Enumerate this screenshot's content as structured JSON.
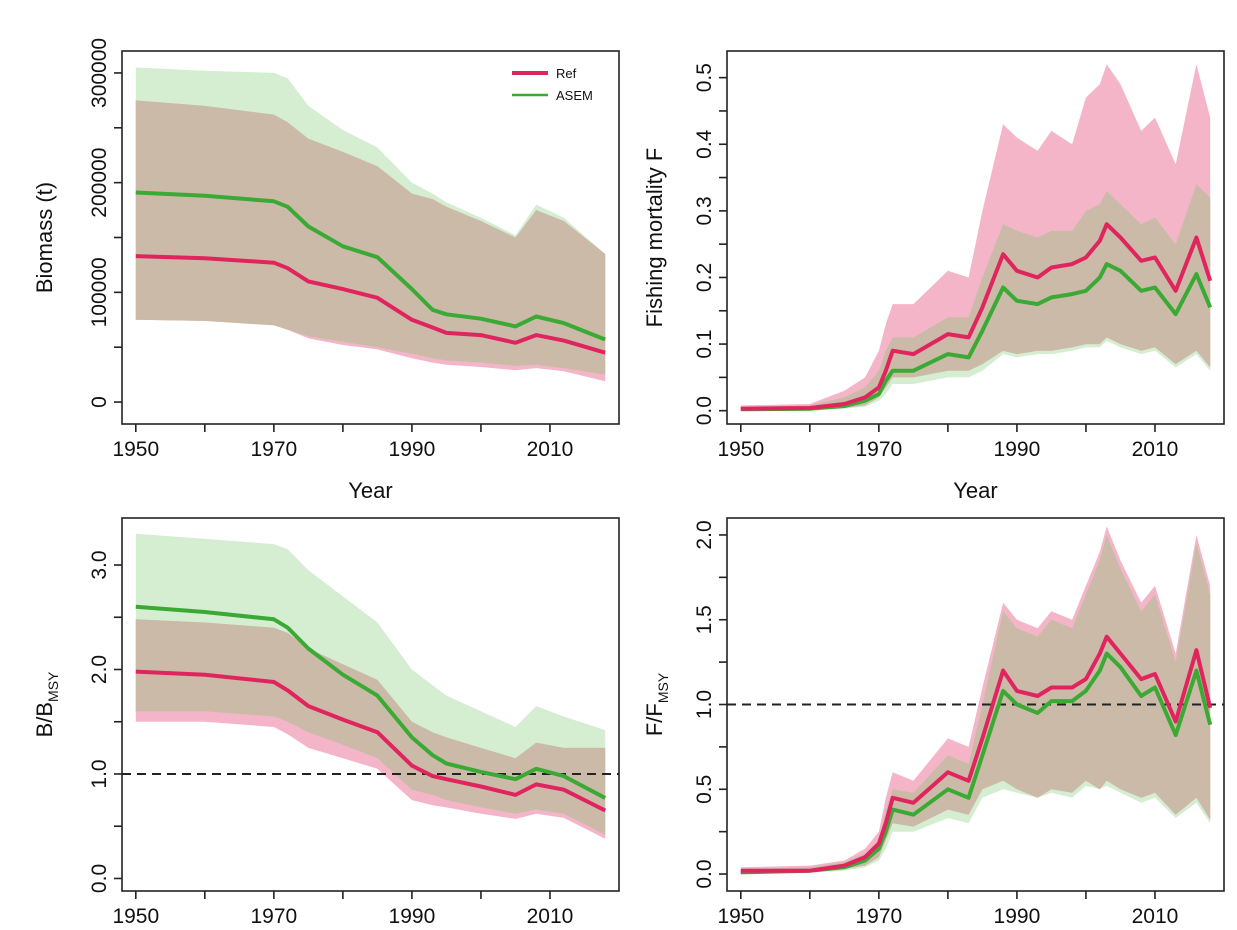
{
  "colors": {
    "ref": "#e0245e",
    "asem": "#3aaa35",
    "ref_band": "#f2a8bf",
    "asem_band": "#b9e2b4",
    "overlap_band": "#cbb8a6",
    "reference_line": "#222222"
  },
  "legend": {
    "entries": [
      {
        "label": "Ref",
        "color_key": "ref"
      },
      {
        "label": "ASEM",
        "color_key": "asem"
      }
    ],
    "placement": "top-right of first panel"
  },
  "chart_data": [
    {
      "type": "line",
      "panel": "top-left",
      "xlabel": "Year",
      "ylabel": "Biomass (t)",
      "xlim": [
        1948,
        2020
      ],
      "ylim": [
        -20000,
        320000
      ],
      "xticks": [
        1950,
        1970,
        1990,
        2010
      ],
      "xtick_labels": [
        "1950",
        "1970",
        "1990",
        "2010"
      ],
      "yticks": [
        0,
        100000,
        200000,
        300000
      ],
      "ytick_labels": [
        "0",
        "100000",
        "200000",
        "300000"
      ],
      "series": [
        {
          "name": "Ref",
          "color_key": "ref",
          "x": [
            1950,
            1960,
            1970,
            1972,
            1975,
            1980,
            1985,
            1990,
            1993,
            1995,
            2000,
            2005,
            2008,
            2012,
            2018
          ],
          "y": [
            133000,
            131000,
            127000,
            122000,
            110000,
            103000,
            95000,
            75000,
            68000,
            63000,
            61000,
            54000,
            61000,
            56000,
            45000
          ],
          "lower": [
            75000,
            74000,
            70000,
            66000,
            58000,
            52000,
            48000,
            40000,
            36000,
            34000,
            32000,
            29000,
            31000,
            28000,
            19000
          ],
          "upper": [
            275000,
            270000,
            262000,
            255000,
            240000,
            228000,
            215000,
            190000,
            185000,
            178000,
            165000,
            150000,
            175000,
            165000,
            135000
          ]
        },
        {
          "name": "ASEM",
          "color_key": "asem",
          "x": [
            1950,
            1960,
            1970,
            1972,
            1975,
            1980,
            1985,
            1990,
            1993,
            1995,
            2000,
            2005,
            2008,
            2012,
            2018
          ],
          "y": [
            191000,
            188000,
            183000,
            178000,
            160000,
            142000,
            132000,
            103000,
            84000,
            80000,
            76000,
            69000,
            78000,
            72000,
            57000
          ],
          "lower": [
            75000,
            74000,
            70000,
            66000,
            60000,
            55000,
            50000,
            44000,
            40000,
            38000,
            36000,
            33000,
            34000,
            31000,
            25000
          ],
          "upper": [
            305000,
            302000,
            300000,
            295000,
            270000,
            248000,
            232000,
            200000,
            190000,
            182000,
            168000,
            152000,
            180000,
            168000,
            135000
          ]
        }
      ]
    },
    {
      "type": "line",
      "panel": "top-right",
      "xlabel": "Year",
      "ylabel": "Fishing mortality F",
      "xlim": [
        1948,
        2020
      ],
      "ylim": [
        -0.02,
        0.54
      ],
      "xticks": [
        1950,
        1970,
        1990,
        2010
      ],
      "xtick_labels": [
        "1950",
        "1970",
        "1990",
        "2010"
      ],
      "yticks": [
        0,
        0.1,
        0.2,
        0.3,
        0.4,
        0.5
      ],
      "ytick_labels": [
        "0.0",
        "0.1",
        "0.2",
        "0.3",
        "0.4",
        "0.5"
      ],
      "series": [
        {
          "name": "Ref",
          "color_key": "ref",
          "x": [
            1950,
            1960,
            1965,
            1968,
            1970,
            1971,
            1972,
            1975,
            1980,
            1983,
            1985,
            1988,
            1990,
            1993,
            1995,
            1998,
            2000,
            2002,
            2003,
            2005,
            2008,
            2010,
            2013,
            2016,
            2018
          ],
          "y": [
            0.003,
            0.004,
            0.01,
            0.02,
            0.035,
            0.06,
            0.09,
            0.085,
            0.115,
            0.11,
            0.155,
            0.235,
            0.21,
            0.2,
            0.215,
            0.22,
            0.23,
            0.255,
            0.28,
            0.26,
            0.225,
            0.23,
            0.18,
            0.26,
            0.195
          ],
          "lower": [
            0,
            0.001,
            0.004,
            0.008,
            0.02,
            0.035,
            0.05,
            0.05,
            0.06,
            0.06,
            0.07,
            0.09,
            0.085,
            0.09,
            0.09,
            0.095,
            0.1,
            0.1,
            0.11,
            0.1,
            0.09,
            0.095,
            0.07,
            0.09,
            0.065
          ],
          "upper": [
            0.008,
            0.01,
            0.03,
            0.05,
            0.09,
            0.13,
            0.16,
            0.16,
            0.21,
            0.2,
            0.3,
            0.43,
            0.41,
            0.39,
            0.42,
            0.4,
            0.47,
            0.49,
            0.52,
            0.49,
            0.42,
            0.44,
            0.37,
            0.52,
            0.44
          ]
        },
        {
          "name": "ASEM",
          "color_key": "asem",
          "x": [
            1950,
            1960,
            1965,
            1968,
            1970,
            1971,
            1972,
            1975,
            1980,
            1983,
            1985,
            1988,
            1990,
            1993,
            1995,
            1998,
            2000,
            2002,
            2003,
            2005,
            2008,
            2010,
            2013,
            2016,
            2018
          ],
          "y": [
            0.002,
            0.003,
            0.007,
            0.015,
            0.025,
            0.045,
            0.06,
            0.06,
            0.085,
            0.08,
            0.12,
            0.185,
            0.165,
            0.16,
            0.17,
            0.175,
            0.18,
            0.2,
            0.22,
            0.21,
            0.18,
            0.185,
            0.145,
            0.205,
            0.155
          ],
          "lower": [
            0,
            0.001,
            0.003,
            0.006,
            0.015,
            0.025,
            0.04,
            0.04,
            0.05,
            0.05,
            0.06,
            0.085,
            0.08,
            0.085,
            0.085,
            0.09,
            0.095,
            0.095,
            0.105,
            0.095,
            0.085,
            0.09,
            0.065,
            0.085,
            0.06
          ],
          "upper": [
            0.006,
            0.008,
            0.02,
            0.035,
            0.06,
            0.09,
            0.11,
            0.11,
            0.14,
            0.14,
            0.2,
            0.28,
            0.27,
            0.26,
            0.27,
            0.27,
            0.3,
            0.31,
            0.33,
            0.31,
            0.28,
            0.29,
            0.25,
            0.34,
            0.32
          ]
        }
      ]
    },
    {
      "type": "line",
      "panel": "bottom-left",
      "xlabel": "",
      "ylabel": "B/B",
      "ylabel_subscript": "MSY",
      "xlim": [
        1948,
        2020
      ],
      "ylim": [
        -0.12,
        3.45
      ],
      "xticks": [
        1950,
        1970,
        1990,
        2010
      ],
      "xtick_labels": [
        "1950",
        "1970",
        "1990",
        "2010"
      ],
      "yticks": [
        0,
        1,
        2,
        3
      ],
      "ytick_labels": [
        "0.0",
        "1.0",
        "2.0",
        "3.0"
      ],
      "reference_line": 1.0,
      "series": [
        {
          "name": "Ref",
          "color_key": "ref",
          "x": [
            1950,
            1960,
            1970,
            1972,
            1975,
            1980,
            1985,
            1990,
            1993,
            1995,
            2000,
            2005,
            2008,
            2012,
            2018
          ],
          "y": [
            1.98,
            1.95,
            1.88,
            1.8,
            1.65,
            1.52,
            1.4,
            1.08,
            0.98,
            0.95,
            0.88,
            0.8,
            0.9,
            0.85,
            0.65
          ],
          "lower": [
            1.5,
            1.5,
            1.45,
            1.38,
            1.25,
            1.15,
            1.05,
            0.75,
            0.7,
            0.68,
            0.62,
            0.57,
            0.62,
            0.58,
            0.38
          ],
          "upper": [
            2.48,
            2.45,
            2.4,
            2.35,
            2.2,
            2.05,
            1.9,
            1.5,
            1.4,
            1.35,
            1.25,
            1.15,
            1.3,
            1.25,
            1.25
          ]
        },
        {
          "name": "ASEM",
          "color_key": "asem",
          "x": [
            1950,
            1960,
            1970,
            1972,
            1975,
            1980,
            1985,
            1990,
            1993,
            1995,
            2000,
            2005,
            2008,
            2012,
            2018
          ],
          "y": [
            2.6,
            2.55,
            2.48,
            2.4,
            2.2,
            1.95,
            1.75,
            1.35,
            1.18,
            1.1,
            1.02,
            0.95,
            1.05,
            0.98,
            0.77
          ],
          "lower": [
            1.6,
            1.6,
            1.55,
            1.5,
            1.4,
            1.28,
            1.15,
            0.85,
            0.8,
            0.75,
            0.68,
            0.62,
            0.66,
            0.62,
            0.42
          ],
          "upper": [
            3.3,
            3.25,
            3.2,
            3.15,
            2.95,
            2.7,
            2.45,
            2.0,
            1.85,
            1.75,
            1.6,
            1.45,
            1.65,
            1.55,
            1.42
          ]
        }
      ]
    },
    {
      "type": "line",
      "panel": "bottom-right",
      "xlabel": "",
      "ylabel": "F/F",
      "ylabel_subscript": "MSY",
      "xlim": [
        1948,
        2020
      ],
      "ylim": [
        -0.1,
        2.1
      ],
      "xticks": [
        1950,
        1970,
        1990,
        2010
      ],
      "xtick_labels": [
        "1950",
        "1970",
        "1990",
        "2010"
      ],
      "yticks": [
        0,
        0.5,
        1,
        1.5,
        2
      ],
      "ytick_labels": [
        "0.0",
        "0.5",
        "1.0",
        "1.5",
        "2.0"
      ],
      "reference_line": 1.0,
      "series": [
        {
          "name": "Ref",
          "color_key": "ref",
          "x": [
            1950,
            1960,
            1965,
            1968,
            1970,
            1971,
            1972,
            1975,
            1980,
            1983,
            1985,
            1988,
            1990,
            1993,
            1995,
            1998,
            2000,
            2002,
            2003,
            2005,
            2008,
            2010,
            2013,
            2016,
            2018
          ],
          "y": [
            0.02,
            0.02,
            0.05,
            0.1,
            0.18,
            0.3,
            0.45,
            0.42,
            0.6,
            0.55,
            0.8,
            1.2,
            1.08,
            1.05,
            1.1,
            1.1,
            1.15,
            1.3,
            1.4,
            1.3,
            1.15,
            1.18,
            0.9,
            1.32,
            0.98
          ],
          "lower": [
            0.0,
            0.01,
            0.03,
            0.05,
            0.1,
            0.2,
            0.3,
            0.28,
            0.38,
            0.35,
            0.5,
            0.55,
            0.5,
            0.45,
            0.5,
            0.48,
            0.55,
            0.5,
            0.55,
            0.5,
            0.45,
            0.48,
            0.35,
            0.45,
            0.32
          ],
          "upper": [
            0.04,
            0.05,
            0.08,
            0.15,
            0.25,
            0.45,
            0.6,
            0.55,
            0.8,
            0.75,
            1.1,
            1.6,
            1.5,
            1.45,
            1.55,
            1.5,
            1.7,
            1.9,
            2.05,
            1.85,
            1.6,
            1.7,
            1.3,
            2.0,
            1.7
          ]
        },
        {
          "name": "ASEM",
          "color_key": "asem",
          "x": [
            1950,
            1960,
            1965,
            1968,
            1970,
            1971,
            1972,
            1975,
            1980,
            1983,
            1985,
            1988,
            1990,
            1993,
            1995,
            1998,
            2000,
            2002,
            2003,
            2005,
            2008,
            2010,
            2013,
            2016,
            2018
          ],
          "y": [
            0.01,
            0.02,
            0.04,
            0.08,
            0.15,
            0.25,
            0.38,
            0.35,
            0.5,
            0.45,
            0.7,
            1.08,
            1.0,
            0.95,
            1.02,
            1.02,
            1.08,
            1.2,
            1.3,
            1.22,
            1.05,
            1.1,
            0.82,
            1.2,
            0.88
          ],
          "lower": [
            0.0,
            0.01,
            0.02,
            0.04,
            0.08,
            0.15,
            0.25,
            0.25,
            0.33,
            0.3,
            0.45,
            0.5,
            0.48,
            0.45,
            0.48,
            0.45,
            0.52,
            0.5,
            0.52,
            0.48,
            0.42,
            0.45,
            0.33,
            0.42,
            0.3
          ],
          "upper": [
            0.03,
            0.04,
            0.07,
            0.12,
            0.2,
            0.38,
            0.5,
            0.48,
            0.7,
            0.65,
            1.0,
            1.55,
            1.45,
            1.4,
            1.5,
            1.45,
            1.65,
            1.85,
            2.0,
            1.8,
            1.55,
            1.65,
            1.25,
            1.95,
            1.65
          ]
        }
      ]
    }
  ]
}
